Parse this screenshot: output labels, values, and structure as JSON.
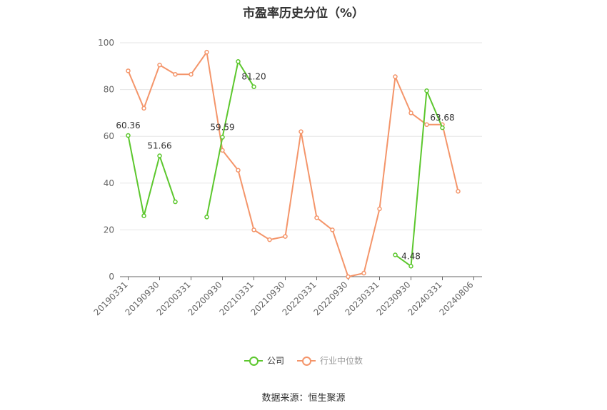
{
  "chart_data": {
    "type": "line",
    "title": "市盈率历史分位（%）",
    "categories": [
      "20190331",
      "20190630",
      "20190930",
      "20191231",
      "20200331",
      "20200630",
      "20200930",
      "20201231",
      "20210331",
      "20210630",
      "20210930",
      "20211231",
      "20220331",
      "20220630",
      "20220930",
      "20221231",
      "20230331",
      "20230630",
      "20230930",
      "20231231",
      "20240331",
      "20240630",
      "20240806"
    ],
    "x_tick_labels": [
      "20190331",
      "20190930",
      "20200331",
      "20200930",
      "20210331",
      "20210930",
      "20220331",
      "20220930",
      "20230331",
      "20230930",
      "20240331",
      "20240806"
    ],
    "ylim": [
      0,
      100
    ],
    "y_ticks": [
      0,
      20,
      40,
      60,
      80,
      100
    ],
    "grid": true,
    "legend_position": "bottom",
    "series": [
      {
        "name": "公司",
        "color": "#5cc72d",
        "values": [
          60.36,
          26,
          51.66,
          32,
          null,
          25.5,
          59.59,
          92,
          81.2,
          null,
          null,
          null,
          null,
          null,
          null,
          null,
          null,
          9.3,
          4.48,
          79.5,
          63.68,
          null,
          null
        ],
        "data_labels": [
          {
            "index": 0,
            "text": "60.36"
          },
          {
            "index": 2,
            "text": "51.66"
          },
          {
            "index": 6,
            "text": "59.59"
          },
          {
            "index": 8,
            "text": "81.20"
          },
          {
            "index": 18,
            "text": "4.48"
          },
          {
            "index": 20,
            "text": "63.68"
          }
        ]
      },
      {
        "name": "行业中位数",
        "color": "#f4956a",
        "values": [
          88,
          72,
          90.5,
          86.5,
          86.5,
          96,
          54,
          45.5,
          20,
          15.8,
          17.2,
          62,
          25.2,
          20,
          0,
          1.5,
          29,
          85.5,
          70,
          65,
          65,
          36.5,
          null
        ]
      }
    ]
  },
  "source": "数据来源：恒生聚源"
}
